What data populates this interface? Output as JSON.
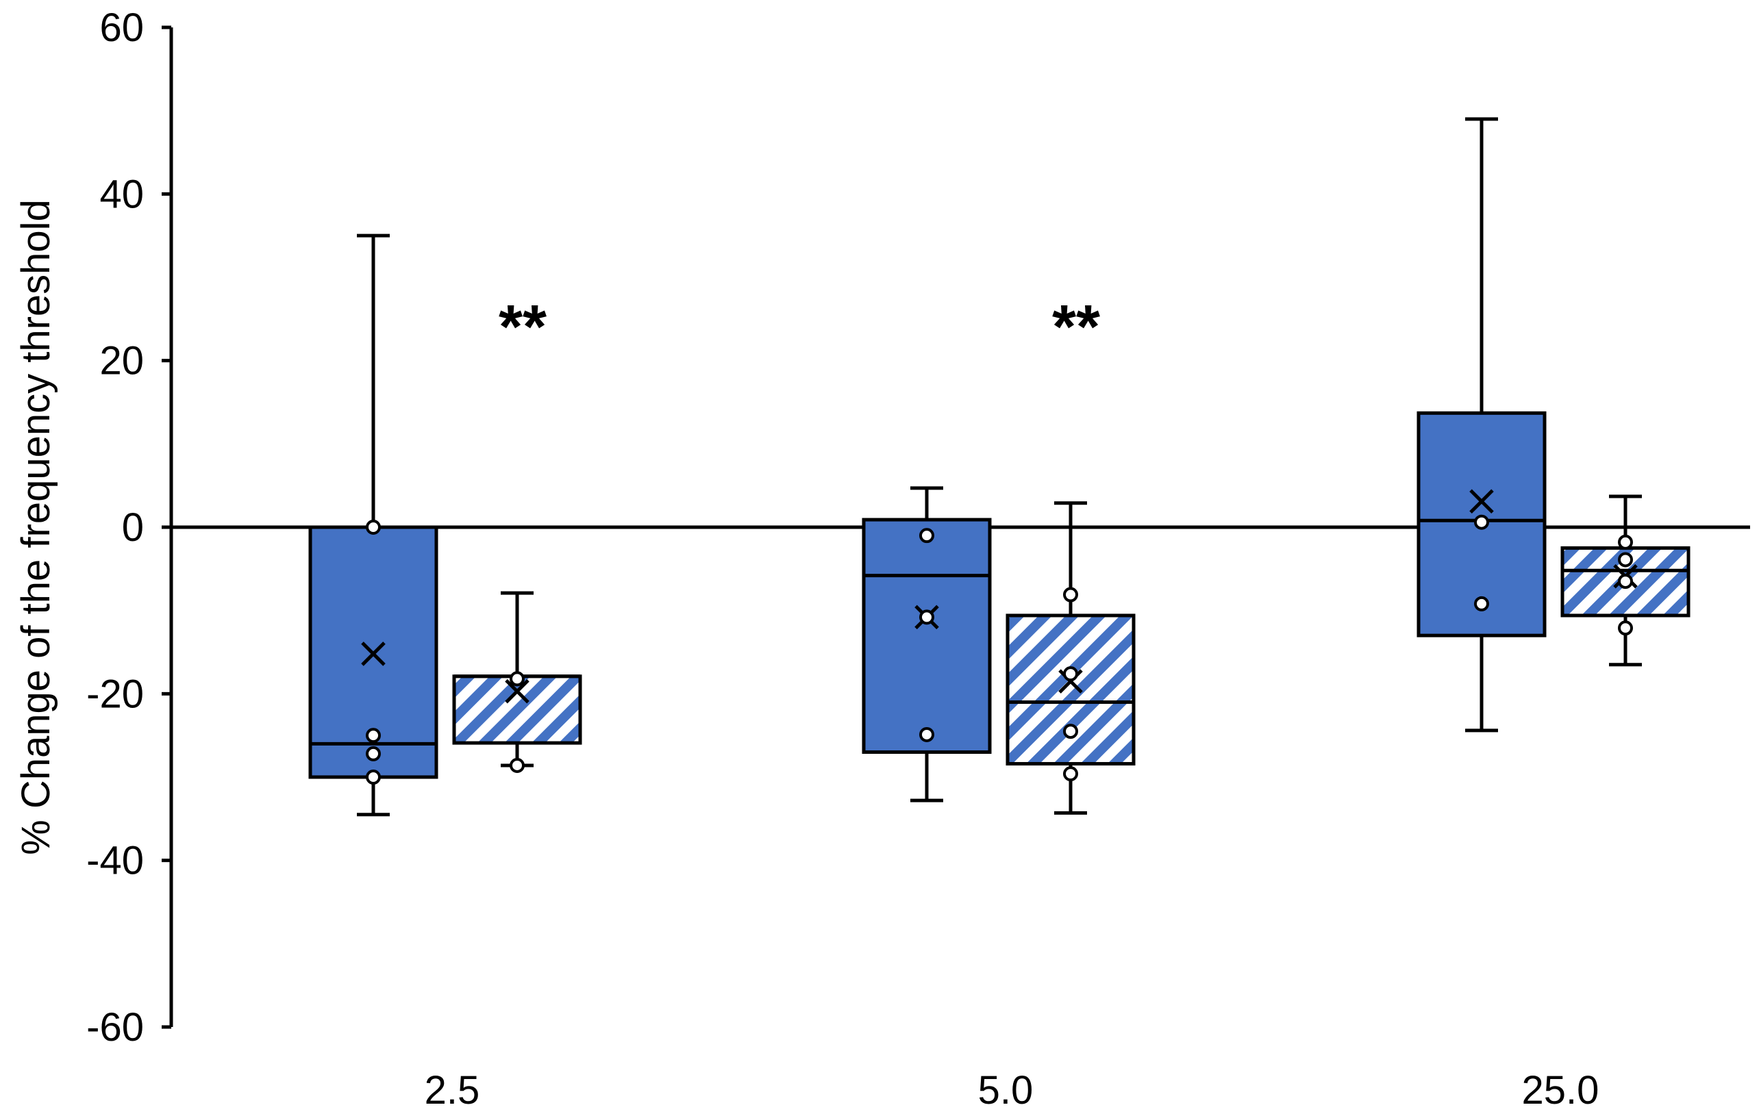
{
  "chart_data": {
    "type": "box",
    "title": "",
    "xlabel": "",
    "ylabel": "% Change of the frequency threshold",
    "ylim": [
      -60,
      60
    ],
    "yticks": [
      "60",
      "40",
      "20",
      "0",
      "-20",
      "-40",
      "-60"
    ],
    "categories": [
      "2.5",
      "5.0",
      "25.0"
    ],
    "reference_line": 0,
    "grid": false,
    "legend": false,
    "colors": {
      "solid_fill": "#4472C4",
      "hatch_fill": "#4472C4",
      "outline": "#000000"
    },
    "series": [
      {
        "fill": "solid",
        "boxes": [
          {
            "category": "2.5",
            "min": -34.5,
            "q1": -30,
            "median": -26,
            "q3": 0,
            "max": 35,
            "mean": -15.2,
            "points": [
              0,
              -25,
              -27.2,
              -30
            ]
          },
          {
            "category": "5.0",
            "min": -32.8,
            "q1": -27,
            "median": -5.8,
            "q3": 0.9,
            "max": 4.7,
            "mean": -10.8,
            "points": [
              -1,
              -10.8,
              -24.9
            ]
          },
          {
            "category": "25.0",
            "min": -24.4,
            "q1": -13,
            "median": 0.8,
            "q3": 13.7,
            "max": 49,
            "mean": 3.1,
            "points": [
              0.6,
              -9.2
            ]
          }
        ]
      },
      {
        "fill": "hatched",
        "boxes": [
          {
            "category": "2.5",
            "min": -28.6,
            "q1": -25.9,
            "median": -17.9,
            "q3": -17.9,
            "max": -7.9,
            "mean": -19.7,
            "points": [
              -18.2,
              -28.6
            ]
          },
          {
            "category": "5.0",
            "min": -34.3,
            "q1": -28.4,
            "median": -21,
            "q3": -10.6,
            "max": 2.9,
            "mean": -18.5,
            "points": [
              -8.1,
              -17.6,
              -24.5,
              -29.6
            ]
          },
          {
            "category": "25.0",
            "min": -16.5,
            "q1": -10.6,
            "median": -5.2,
            "q3": -2.5,
            "max": 3.7,
            "mean": -5.9,
            "points": [
              -1.8,
              -3.9,
              -6.5,
              -12.1
            ]
          }
        ]
      }
    ],
    "annotations": [
      {
        "text": "**",
        "category": "2.5",
        "y": 24
      },
      {
        "text": "**",
        "category": "5.0",
        "y": 24
      }
    ]
  }
}
